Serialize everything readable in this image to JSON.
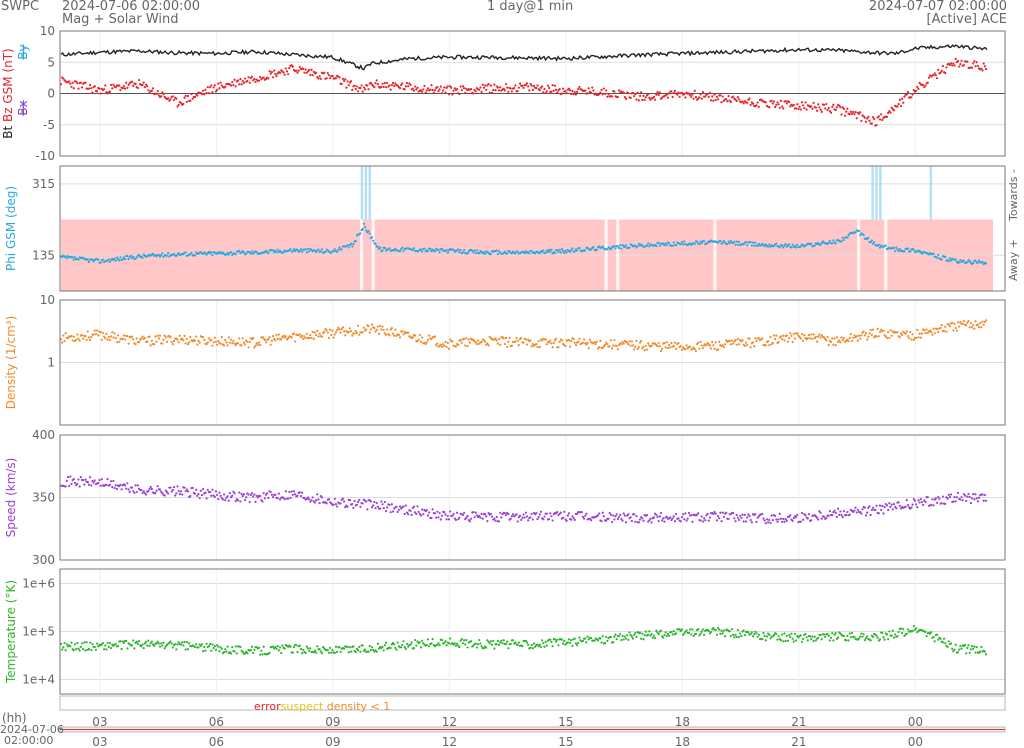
{
  "header": {
    "brand": "SWPC",
    "subtitle": "Mag + Solar Wind",
    "start_time": "2024-07-06 02:00:00",
    "end_time": "2024-07-07 02:00:00",
    "resolution": "1 day@1 min",
    "source": "[Active] ACE"
  },
  "colors": {
    "bt": "#222222",
    "bz": "#e8232a",
    "bx": "#8a46c9",
    "by": "#29a8e0",
    "phi": "#29a8e0",
    "phi_band": "#ffc7c7",
    "density": "#f28a2a",
    "speed": "#9b3fd6",
    "temperature": "#2cb52c",
    "error": "#e8232a",
    "suspect": "#e0c31a",
    "grid": "#dddddd",
    "axis": "#777777"
  },
  "legend": {
    "error": "error",
    "suspect": "suspect",
    "density": "density < 1"
  },
  "xaxis": {
    "label": "(hh)",
    "ticks": [
      "03",
      "06",
      "09",
      "12",
      "15",
      "18",
      "21",
      "00"
    ],
    "tick_hours": [
      3,
      6,
      9,
      12,
      15,
      18,
      21,
      24
    ],
    "range_hours": [
      2,
      26
    ],
    "bottom_date": "2024-07-06",
    "bottom_time": "02:00:00"
  },
  "chart_data": [
    {
      "type": "line",
      "ylabel_parts": [
        "Bt",
        "Bz GSM (nT)",
        "Bx",
        "By"
      ],
      "ylim": [
        -10,
        10
      ],
      "yticks": [
        "10",
        "5",
        "0",
        "-5",
        "-10"
      ],
      "ytick_values": [
        10,
        5,
        0,
        -5,
        -10
      ],
      "x_hours": [
        2,
        3,
        4,
        5,
        6,
        7,
        8,
        9,
        9.8,
        10,
        11,
        12,
        13,
        14,
        15,
        16,
        17,
        18,
        19,
        20,
        21,
        22,
        23,
        23.5,
        24,
        25,
        26
      ],
      "series": [
        {
          "name": "Bt",
          "values": [
            6.2,
            6.6,
            6.8,
            6.5,
            6.4,
            6.7,
            6.2,
            5.8,
            4.0,
            4.8,
            5.6,
            5.8,
            5.8,
            5.7,
            5.6,
            5.9,
            6.2,
            6.4,
            6.6,
            6.8,
            7.0,
            6.9,
            6.5,
            6.4,
            7.2,
            7.6,
            7.0
          ]
        },
        {
          "name": "Bz GSM (nT)",
          "values": [
            2.0,
            0.5,
            1.5,
            -1.5,
            1.0,
            2.5,
            4.0,
            2.5,
            0.5,
            1.5,
            1.0,
            0.5,
            0.8,
            1.0,
            0.5,
            0.2,
            -0.5,
            0.0,
            -0.8,
            -1.5,
            -2.0,
            -2.5,
            -4.5,
            -2.0,
            0.5,
            5.0,
            4.0
          ]
        }
      ]
    },
    {
      "type": "scatter",
      "ylabel": "Phi GSM (deg)",
      "right_label_top": "Towards -",
      "right_label_bottom": "Away +",
      "ylim": [
        45,
        360
      ],
      "band": [
        45,
        225
      ],
      "yticks": [
        "315",
        "135"
      ],
      "ytick_values": [
        315,
        135
      ],
      "x_hours": [
        2,
        3,
        4,
        5,
        6,
        7,
        8,
        9,
        9.5,
        9.8,
        10.2,
        11,
        12,
        13,
        14,
        15,
        16,
        17,
        18,
        19,
        20,
        21,
        22,
        22.5,
        23,
        23.5,
        24,
        25,
        26
      ],
      "values": [
        130,
        120,
        132,
        138,
        140,
        142,
        148,
        145,
        160,
        210,
        150,
        150,
        146,
        142,
        142,
        146,
        154,
        160,
        165,
        168,
        162,
        158,
        170,
        195,
        160,
        150,
        148,
        120,
        115
      ]
    },
    {
      "type": "scatter",
      "ylabel": "Density (1/cm³)",
      "scale": "log",
      "ylim": [
        0.1,
        10
      ],
      "yticks": [
        "10",
        "1"
      ],
      "ytick_values": [
        10,
        1
      ],
      "x_hours": [
        2,
        3,
        4,
        5,
        6,
        7,
        8,
        9,
        10,
        11,
        12,
        13,
        14,
        15,
        16,
        17,
        18,
        19,
        20,
        21,
        22,
        23,
        24,
        25,
        26
      ],
      "values": [
        2.5,
        2.8,
        2.2,
        2.4,
        2.2,
        2.1,
        2.6,
        3.0,
        3.5,
        2.6,
        2.0,
        2.2,
        2.1,
        2.1,
        2.0,
        1.9,
        1.8,
        1.9,
        2.2,
        2.6,
        2.2,
        3.0,
        2.8,
        3.8,
        4.5
      ]
    },
    {
      "type": "scatter",
      "ylabel": "Speed (km/s)",
      "ylim": [
        300,
        400
      ],
      "yticks": [
        "400",
        "350",
        "300"
      ],
      "ytick_values": [
        400,
        350,
        300
      ],
      "x_hours": [
        2,
        3,
        4,
        5,
        6,
        7,
        8,
        9,
        10,
        11,
        12,
        13,
        14,
        15,
        16,
        17,
        18,
        19,
        20,
        21,
        22,
        23,
        24,
        25,
        26
      ],
      "values": [
        363,
        362,
        356,
        355,
        352,
        350,
        353,
        347,
        344,
        340,
        335,
        334,
        335,
        335,
        334,
        334,
        334,
        335,
        333,
        334,
        338,
        340,
        345,
        350,
        348
      ]
    },
    {
      "type": "scatter",
      "ylabel": "Temperature (°K)",
      "scale": "log",
      "ylim": [
        5000,
        2000000
      ],
      "yticks": [
        "1e+6",
        "1e+5",
        "1e+4"
      ],
      "ytick_values": [
        1000000,
        100000,
        10000
      ],
      "x_hours": [
        2,
        3,
        4,
        5,
        6,
        7,
        8,
        9,
        10,
        11,
        12,
        13,
        14,
        15,
        16,
        17,
        18,
        19,
        20,
        21,
        22,
        23,
        24,
        25,
        26
      ],
      "values": [
        50000,
        50000,
        55000,
        52000,
        45000,
        40000,
        45000,
        40000,
        45000,
        55000,
        60000,
        55000,
        55000,
        60000,
        70000,
        85000,
        95000,
        100000,
        80000,
        75000,
        80000,
        75000,
        110000,
        45000,
        40000
      ]
    }
  ]
}
